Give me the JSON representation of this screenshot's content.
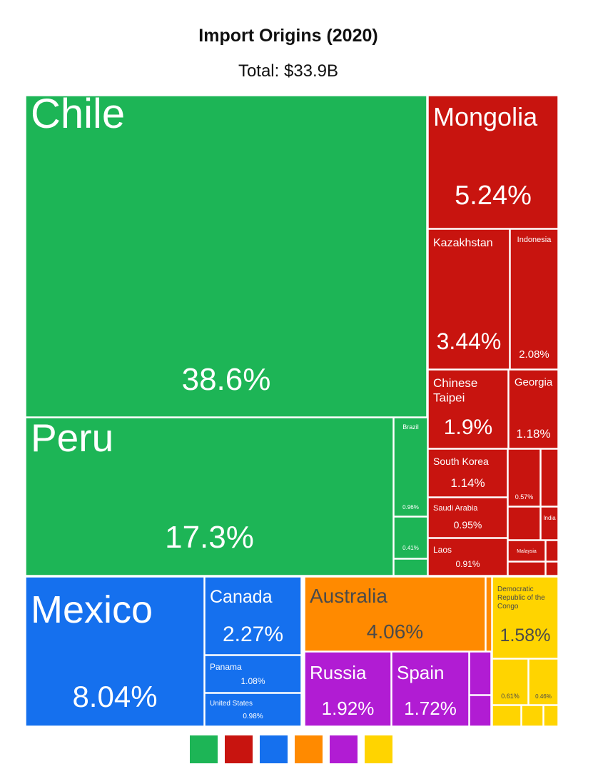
{
  "title": "Import Origins (2020)",
  "subtitle": "Total: $33.9B",
  "colors": {
    "green": "#1db556",
    "red": "#c8140f",
    "blue": "#1570ee",
    "orange": "#ff8a00",
    "purple": "#b11cd3",
    "yellow": "#ffd400"
  },
  "chart_data": {
    "type": "treemap",
    "title": "Import Origins (2020)",
    "subtitle": "Total: $33.9B",
    "items": [
      {
        "label": "Chile",
        "value": "38.6%",
        "color": "green"
      },
      {
        "label": "Peru",
        "value": "17.3%",
        "color": "green"
      },
      {
        "label": "Brazil",
        "value": "0.96%",
        "color": "green"
      },
      {
        "label": "",
        "value": "0.41%",
        "color": "green"
      },
      {
        "label": "Mongolia",
        "value": "5.24%",
        "color": "red"
      },
      {
        "label": "Kazakhstan",
        "value": "3.44%",
        "color": "red"
      },
      {
        "label": "Indonesia",
        "value": "2.08%",
        "color": "red"
      },
      {
        "label": "Chinese Taipei",
        "value": "1.9%",
        "color": "red"
      },
      {
        "label": "Georgia",
        "value": "1.18%",
        "color": "red"
      },
      {
        "label": "South Korea",
        "value": "1.14%",
        "color": "red"
      },
      {
        "label": "",
        "value": "0.57%",
        "color": "red"
      },
      {
        "label": "Saudi Arabia",
        "value": "0.95%",
        "color": "red"
      },
      {
        "label": "India",
        "value": "",
        "color": "red"
      },
      {
        "label": "Laos",
        "value": "0.91%",
        "color": "red"
      },
      {
        "label": "Malaysia",
        "value": "",
        "color": "red"
      },
      {
        "label": "Mexico",
        "value": "8.04%",
        "color": "blue"
      },
      {
        "label": "Canada",
        "value": "2.27%",
        "color": "blue"
      },
      {
        "label": "Panama",
        "value": "1.08%",
        "color": "blue"
      },
      {
        "label": "United States",
        "value": "0.98%",
        "color": "blue"
      },
      {
        "label": "Australia",
        "value": "4.06%",
        "color": "orange"
      },
      {
        "label": "Russia",
        "value": "1.92%",
        "color": "purple"
      },
      {
        "label": "Spain",
        "value": "1.72%",
        "color": "purple"
      },
      {
        "label": "Democratic Republic of the Congo",
        "value": "1.58%",
        "color": "yellow"
      },
      {
        "label": "",
        "value": "0.61%",
        "color": "yellow"
      },
      {
        "label": "",
        "value": "0.46%",
        "color": "yellow"
      }
    ],
    "legend": [
      "green",
      "red",
      "blue",
      "orange",
      "purple",
      "yellow"
    ],
    "legend_position": "bottom"
  }
}
